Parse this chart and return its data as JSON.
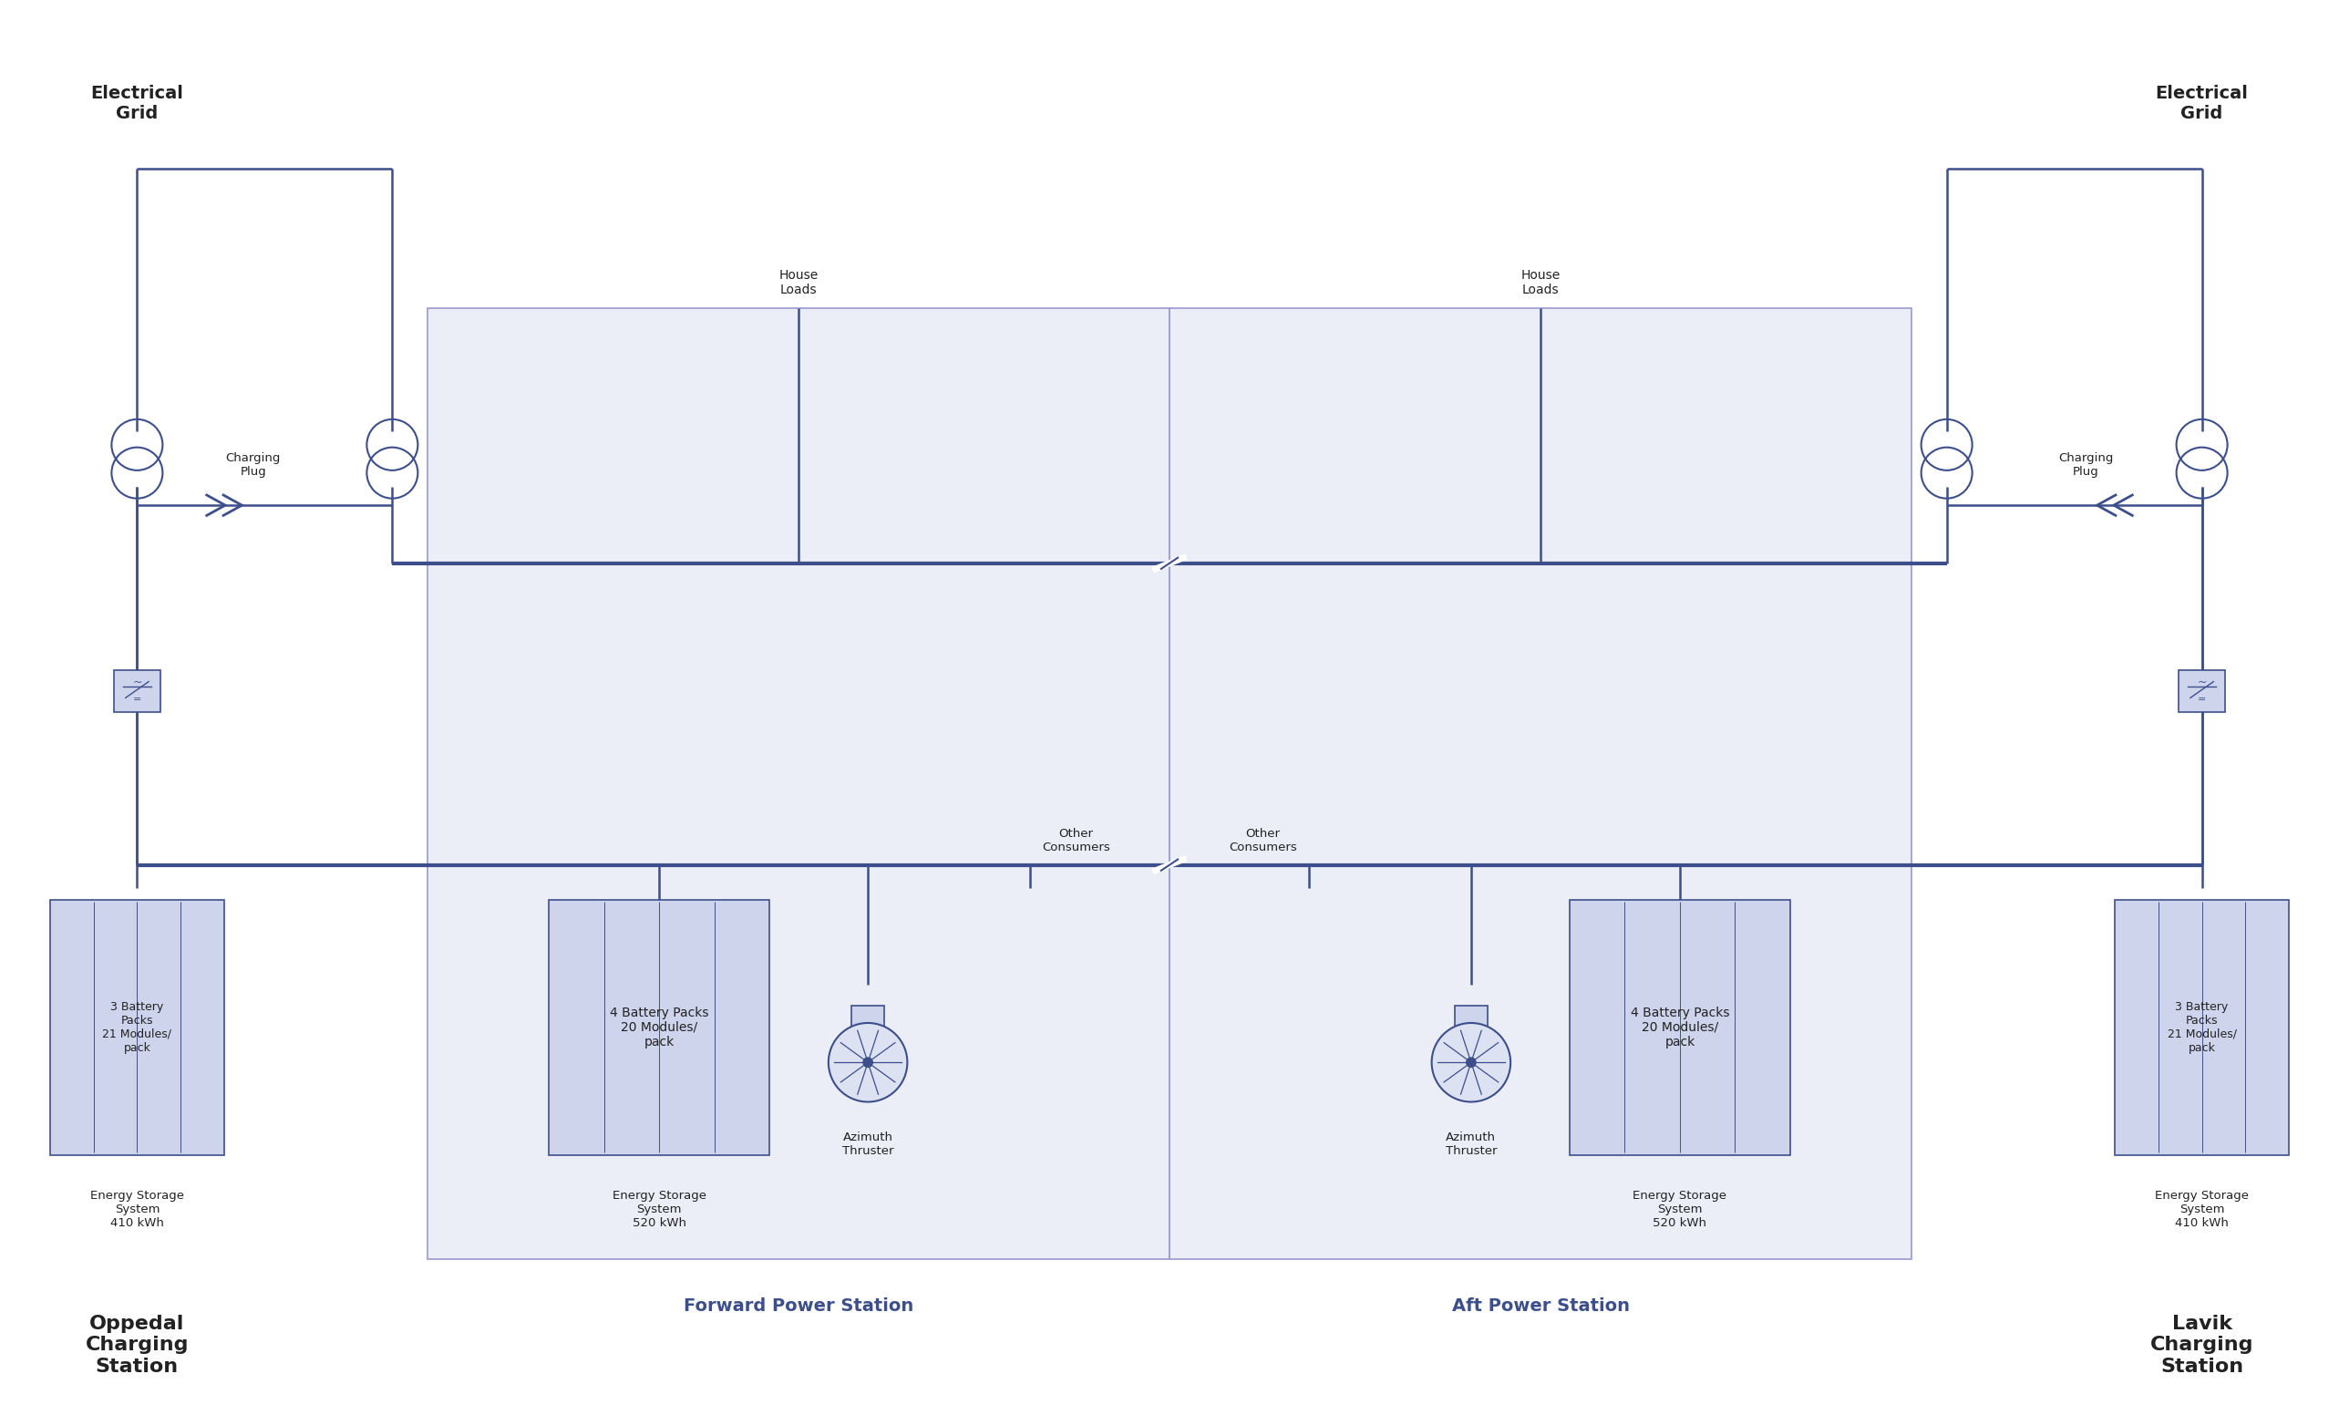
{
  "bg_color": "#ffffff",
  "line_color": "#3d4f8a",
  "box_fill": "#cdd4ec",
  "box_edge": "#3d4f8a",
  "station_fill": "#eceef7",
  "station_edge": "#9999cc",
  "text_color": "#222222",
  "title_left": "Electrical\nGrid",
  "title_right": "Electrical\nGrid",
  "label_left_station": "Oppedal\nCharging\nStation",
  "label_right_station": "Lavik\nCharging\nStation",
  "label_forward": "Forward Power Station",
  "label_aft": "Aft Power Station",
  "label_ess_left": "Energy Storage\nSystem\n410 kWh",
  "label_ess_right": "Energy Storage\nSystem\n410 kWh",
  "label_ess_forward": "Energy Storage\nSystem\n520 kWh",
  "label_ess_aft": "Energy Storage\nSystem\n520 kWh",
  "label_bat_left": "3 Battery\nPacks\n21 Modules/\npack",
  "label_bat_right": "3 Battery\nPacks\n21 Modules/\npack",
  "label_bat_forward": "4 Battery Packs\n20 Modules/\npack",
  "label_bat_aft": "4 Battery Packs\n20 Modules/\npack",
  "label_house_forward": "House\nLoads",
  "label_house_aft": "House\nLoads",
  "label_other_forward": "Other\nConsumers",
  "label_other_aft": "Other\nConsumers",
  "label_azimuth_forward": "Azimuth\nThruster",
  "label_azimuth_aft": "Azimuth\nThruster",
  "label_charging_left": "Charging\nPlug",
  "label_charging_right": "Charging\nPlug"
}
